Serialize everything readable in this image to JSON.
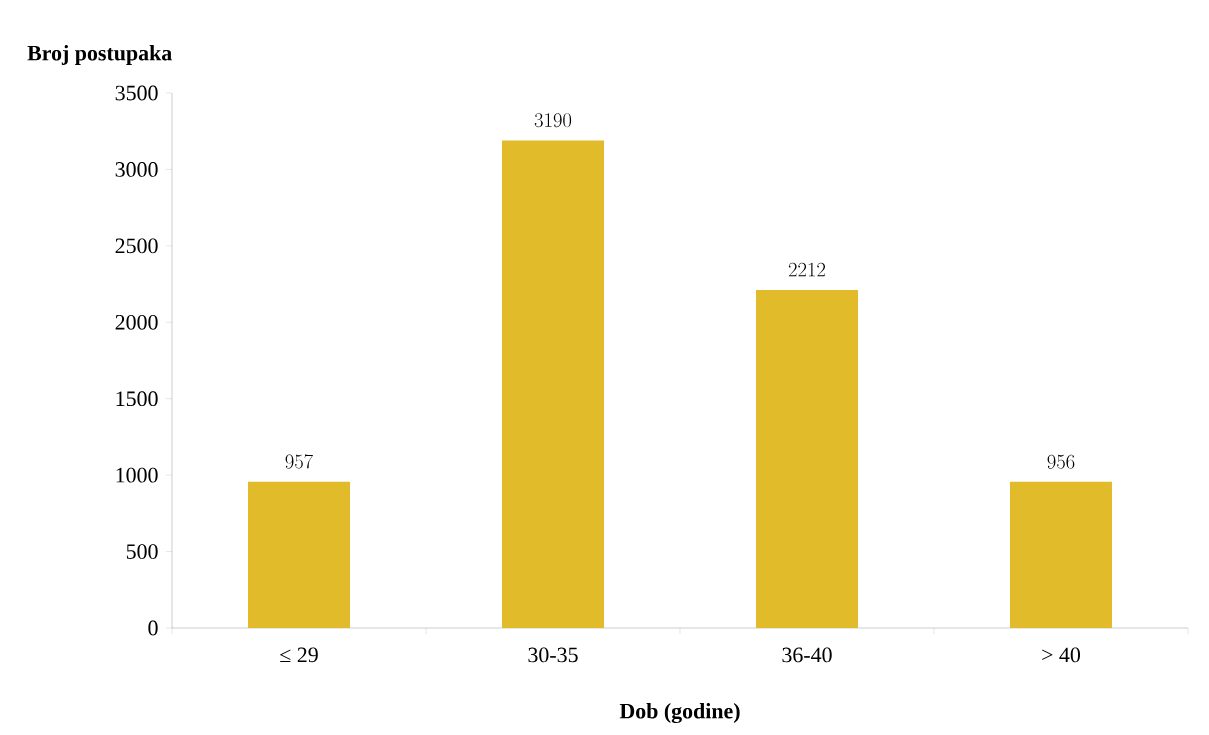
{
  "chart_data": {
    "type": "bar",
    "xlabel": "Dob (godine)",
    "ylabel": "Broj postupaka",
    "categories": [
      "≤ 29",
      "30-35",
      "36-40",
      "> 40"
    ],
    "values": [
      957,
      3190,
      2212,
      956
    ],
    "color": "#e1bb2a",
    "ylim": [
      0,
      3500
    ],
    "yticks": [
      0,
      500,
      1000,
      1500,
      2000,
      2500,
      3000,
      3500
    ],
    "data_labels": true
  }
}
